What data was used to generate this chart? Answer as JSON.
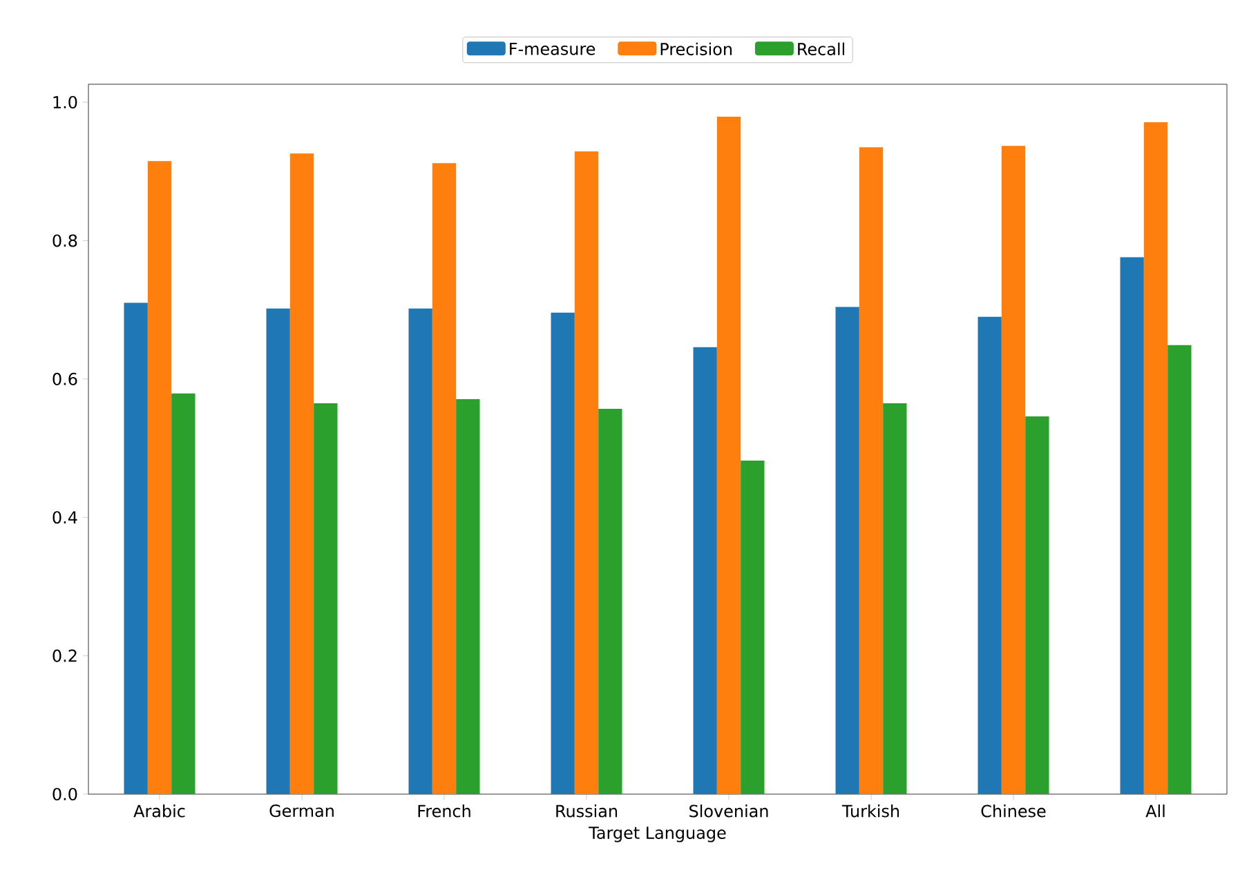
{
  "chart_data": {
    "type": "bar",
    "xlabel": "Target Language",
    "categories": [
      "Arabic",
      "German",
      "French",
      "Russian",
      "Slovenian",
      "Turkish",
      "Chinese",
      "All"
    ],
    "series": [
      {
        "name": "F-measure",
        "color": "#1f77b4",
        "values": [
          0.71,
          0.702,
          0.702,
          0.696,
          0.646,
          0.704,
          0.69,
          0.776
        ]
      },
      {
        "name": "Precision",
        "color": "#ff7f0e",
        "values": [
          0.915,
          0.926,
          0.912,
          0.929,
          0.979,
          0.935,
          0.937,
          0.971
        ]
      },
      {
        "name": "Recall",
        "color": "#2ca02c",
        "values": [
          0.579,
          0.565,
          0.571,
          0.557,
          0.482,
          0.565,
          0.546,
          0.649
        ]
      }
    ],
    "ylim": [
      0,
      1.026
    ],
    "yticks": [
      {
        "value": 0,
        "label": "0.0"
      },
      {
        "value": 0.2,
        "label": "0.2"
      },
      {
        "value": 0.4,
        "label": "0.4"
      },
      {
        "value": 0.6,
        "label": "0.6"
      },
      {
        "value": 0.8,
        "label": "0.8"
      },
      {
        "value": 1.0,
        "label": "1.0"
      }
    ],
    "legend": "top",
    "grid": false
  }
}
